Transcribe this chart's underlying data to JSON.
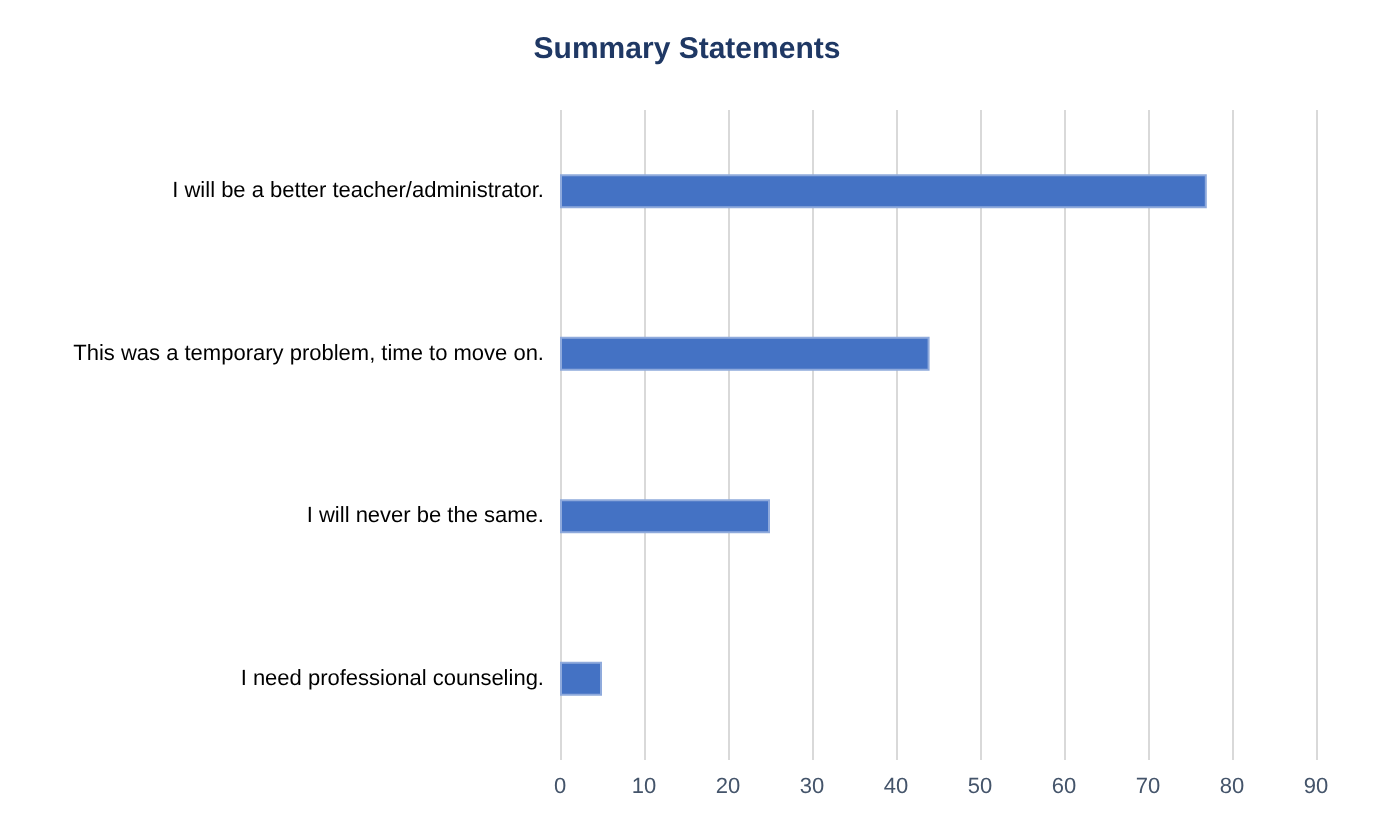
{
  "chart_data": {
    "type": "bar",
    "orientation": "horizontal",
    "title": "Summary Statements",
    "categories": [
      "I will be a better teacher/administrator.",
      "This was a temporary problem, time to move on.",
      "I will never be the same.",
      "I need professional counseling."
    ],
    "values": [
      77,
      44,
      25,
      5
    ],
    "color": "#4472c4",
    "xlim": [
      0,
      90
    ],
    "xticks": [
      0,
      10,
      20,
      30,
      40,
      50,
      60,
      70,
      80,
      90
    ],
    "grid": "x"
  }
}
